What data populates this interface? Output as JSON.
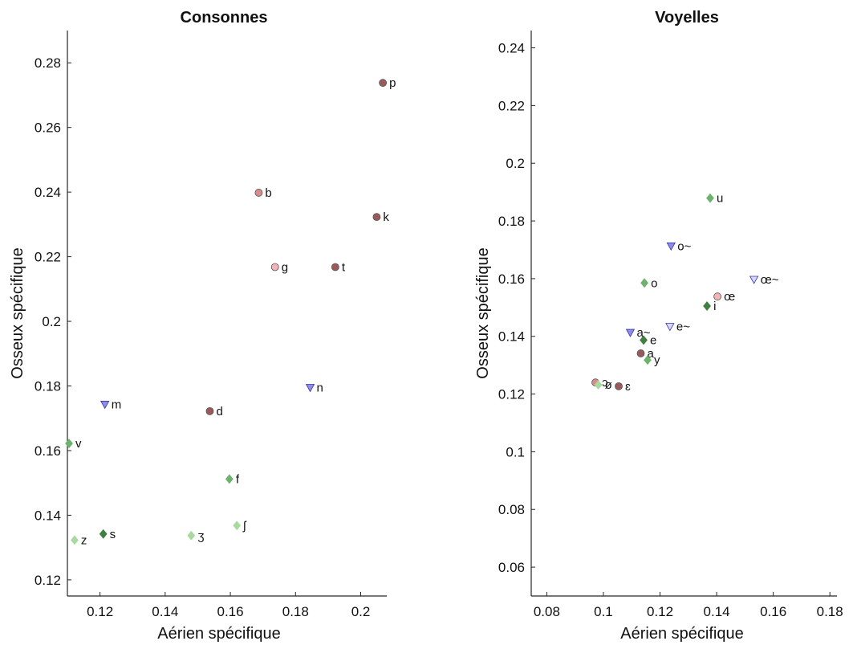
{
  "colors": {
    "dark_red": "#9b5a5a",
    "light_red": "#f2b4b4",
    "dark_green": "#3f7f3f",
    "mid_green": "#6db26d",
    "light_green": "#a8daa0",
    "blue_fill": "#8e8ee8",
    "light_blue_fill": "#d8d8ff",
    "marker_edge": "#555555"
  },
  "chart_data": [
    {
      "type": "scatter",
      "title": "Consonnes",
      "xlabel": "Aérien spécifique",
      "ylabel": "Osseux spécifique",
      "xlim": [
        0.11,
        0.208
      ],
      "ylim": [
        0.115,
        0.29
      ],
      "xticks": [
        "0.12",
        "0.14",
        "0.16",
        "0.18",
        "0.2"
      ],
      "yticks": [
        "0.12",
        "0.14",
        "0.16",
        "0.18",
        "0.2",
        "0.22",
        "0.24",
        "0.26",
        "0.28"
      ],
      "points": [
        {
          "label": "p",
          "x": 0.2068,
          "y": 0.2738,
          "marker": "circle",
          "color": "#9b5a5a"
        },
        {
          "label": "b",
          "x": 0.1687,
          "y": 0.2398,
          "marker": "circle",
          "color": "#d98c8c"
        },
        {
          "label": "k",
          "x": 0.2049,
          "y": 0.2323,
          "marker": "circle",
          "color": "#9b5a5a"
        },
        {
          "label": "g",
          "x": 0.1737,
          "y": 0.2168,
          "marker": "circle",
          "color": "#f2b4b4"
        },
        {
          "label": "t",
          "x": 0.1922,
          "y": 0.2168,
          "marker": "circle",
          "color": "#9b5a5a"
        },
        {
          "label": "n",
          "x": 0.1845,
          "y": 0.1795,
          "marker": "triangle",
          "color": "#8e8ee8"
        },
        {
          "label": "m",
          "x": 0.1215,
          "y": 0.1743,
          "marker": "triangle",
          "color": "#8e8ee8"
        },
        {
          "label": "d",
          "x": 0.1537,
          "y": 0.1722,
          "marker": "circle",
          "color": "#9b5a5a"
        },
        {
          "label": "v",
          "x": 0.1105,
          "y": 0.1622,
          "marker": "diamond",
          "color": "#6db26d"
        },
        {
          "label": "f",
          "x": 0.1597,
          "y": 0.1512,
          "marker": "diamond",
          "color": "#6db26d"
        },
        {
          "label": "ʃ",
          "x": 0.162,
          "y": 0.1368,
          "marker": "diamond",
          "color": "#a8daa0"
        },
        {
          "label": "s",
          "x": 0.121,
          "y": 0.1342,
          "marker": "diamond",
          "color": "#3f7f3f"
        },
        {
          "label": "ʒ",
          "x": 0.148,
          "y": 0.1337,
          "marker": "diamond",
          "color": "#a8daa0"
        },
        {
          "label": "z",
          "x": 0.1122,
          "y": 0.1323,
          "marker": "diamond",
          "color": "#a8daa0"
        }
      ]
    },
    {
      "type": "scatter",
      "title": "Voyelles",
      "xlabel": "Aérien spécifique",
      "ylabel": "Osseux spécifique",
      "xlim": [
        0.0745,
        0.1825
      ],
      "ylim": [
        0.05,
        0.246
      ],
      "xticks": [
        "0.08",
        "0.1",
        "0.12",
        "0.14",
        "0.16",
        "0.18"
      ],
      "yticks": [
        "0.06",
        "0.08",
        "0.1",
        "0.12",
        "0.14",
        "0.16",
        "0.18",
        "0.2",
        "0.22",
        "0.24"
      ],
      "points": [
        {
          "label": "u",
          "x": 0.1377,
          "y": 0.1879,
          "marker": "diamond",
          "color": "#6db26d"
        },
        {
          "label": "o~",
          "x": 0.1239,
          "y": 0.1713,
          "marker": "triangle",
          "color": "#8e8ee8"
        },
        {
          "label": "œ~",
          "x": 0.1532,
          "y": 0.1597,
          "marker": "triangle",
          "color": "#d8d8ff"
        },
        {
          "label": "o",
          "x": 0.1145,
          "y": 0.1585,
          "marker": "diamond",
          "color": "#6db26d"
        },
        {
          "label": "œ",
          "x": 0.1403,
          "y": 0.1538,
          "marker": "circle",
          "color": "#f2b4b4"
        },
        {
          "label": "i",
          "x": 0.1366,
          "y": 0.1505,
          "marker": "diamond",
          "color": "#3f7f3f"
        },
        {
          "label": "e~",
          "x": 0.1235,
          "y": 0.1434,
          "marker": "triangle",
          "color": "#d8d8ff"
        },
        {
          "label": "a~",
          "x": 0.1095,
          "y": 0.1413,
          "marker": "triangle",
          "color": "#8e8ee8"
        },
        {
          "label": "e",
          "x": 0.1142,
          "y": 0.1387,
          "marker": "diamond",
          "color": "#3f7f3f"
        },
        {
          "label": "a",
          "x": 0.1132,
          "y": 0.1341,
          "marker": "circle",
          "color": "#9b5a5a"
        },
        {
          "label": "y",
          "x": 0.1156,
          "y": 0.1318,
          "marker": "diamond",
          "color": "#6db26d"
        },
        {
          "label": "ɔ",
          "x": 0.0972,
          "y": 0.124,
          "marker": "circle",
          "color": "#d98c8c"
        },
        {
          "label": "ø",
          "x": 0.0982,
          "y": 0.1232,
          "marker": "diamond",
          "color": "#a8daa0"
        },
        {
          "label": "ɛ",
          "x": 0.1054,
          "y": 0.1227,
          "marker": "circle",
          "color": "#9b5a5a"
        }
      ]
    }
  ]
}
